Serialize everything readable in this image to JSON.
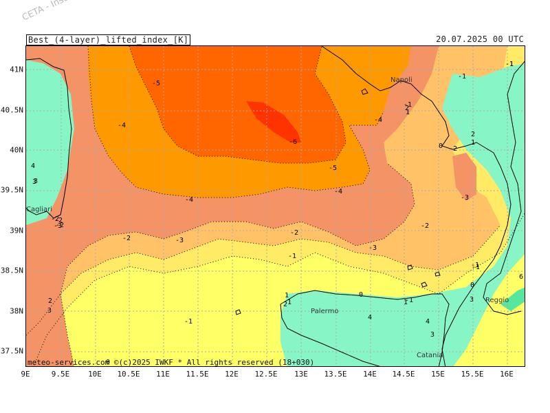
{
  "watermark": "CETA - Inst.",
  "header": {
    "title": "Best_(4-layer)_lifted_index_[K]",
    "timestamp": "20.07.2025 00 UTC"
  },
  "footer": "meteo-services.com  ©(c)2025 IWKF * All rights reserved (18+030)",
  "axes": {
    "lat_labels": [
      "41N",
      "40.5N",
      "40N",
      "39.5N",
      "39N",
      "38.5N",
      "38N",
      "37.5N"
    ],
    "lon_labels": [
      "9E",
      "9.5E",
      "10E",
      "10.5E",
      "11E",
      "11.5E",
      "12E",
      "12.5E",
      "13E",
      "13.5E",
      "14E",
      "14.5E",
      "15E",
      "15.5E",
      "16E"
    ]
  },
  "colors": {
    "cat_minus6": "#ff3300",
    "cat_minus5": "#ff6600",
    "cat_minus4": "#ff9900",
    "cat_minus3": "#f49365",
    "cat_minus2": "#ffc266",
    "cat_minus1": "#ffeb66",
    "cat_0": "#ffff66",
    "cat_pos": "#88f5c7",
    "cat_pos_high": "#55e6a0",
    "grid": "#aaaaaa",
    "coast": "#000000"
  },
  "places": [
    "Napoli",
    "Cagliari",
    "Palermo",
    "Catania",
    "Reggio"
  ],
  "contour_labels": [
    "-5",
    "-4",
    "-6",
    "-5",
    "-4",
    "-4",
    "-4",
    "-3",
    "-2",
    "-2",
    "-3",
    "-2",
    "-3",
    "-1",
    "-1",
    "-1",
    "0",
    "1",
    "2",
    "1",
    "-2",
    "3",
    "0",
    "-1",
    "2",
    "1",
    "4",
    "3",
    "4",
    "3",
    "6",
    "-2",
    "-3",
    "2",
    "1",
    "0",
    "-1",
    "-1",
    "-1",
    "-1",
    "1",
    "4",
    "3",
    "2",
    "3",
    "-2",
    "-2",
    "1",
    "0"
  ]
}
